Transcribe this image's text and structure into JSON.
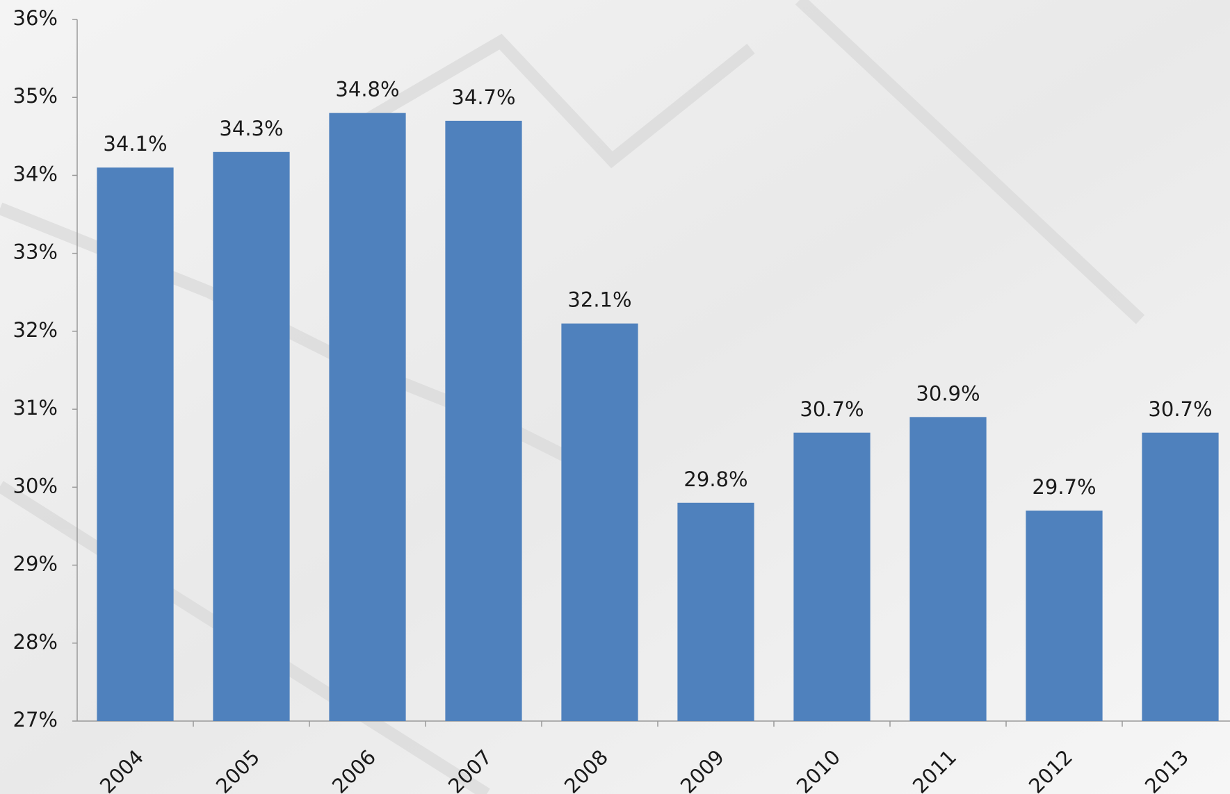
{
  "chart_data": {
    "type": "bar",
    "categories": [
      "2004",
      "2005",
      "2006",
      "2007",
      "2008",
      "2009",
      "2010",
      "2011",
      "2012",
      "2013"
    ],
    "values": [
      34.1,
      34.3,
      34.8,
      34.7,
      32.1,
      29.8,
      30.7,
      30.9,
      29.7,
      30.7
    ],
    "value_labels": [
      "34.1%",
      "34.3%",
      "34.8%",
      "34.7%",
      "32.1%",
      "29.8%",
      "30.7%",
      "30.9%",
      "29.7%",
      "30.7%"
    ],
    "color": "#4f81bd",
    "ylim": [
      27,
      36
    ],
    "yticks": [
      {
        "value": 27,
        "label": "27%"
      },
      {
        "value": 28,
        "label": "28%"
      },
      {
        "value": 29,
        "label": "29%"
      },
      {
        "value": 30,
        "label": "30%"
      },
      {
        "value": 31,
        "label": "31%"
      },
      {
        "value": 32,
        "label": "32%"
      },
      {
        "value": 33,
        "label": "33%"
      },
      {
        "value": 34,
        "label": "34%"
      },
      {
        "value": 35,
        "label": "35%"
      },
      {
        "value": 36,
        "label": "36%"
      }
    ],
    "grid": false
  }
}
